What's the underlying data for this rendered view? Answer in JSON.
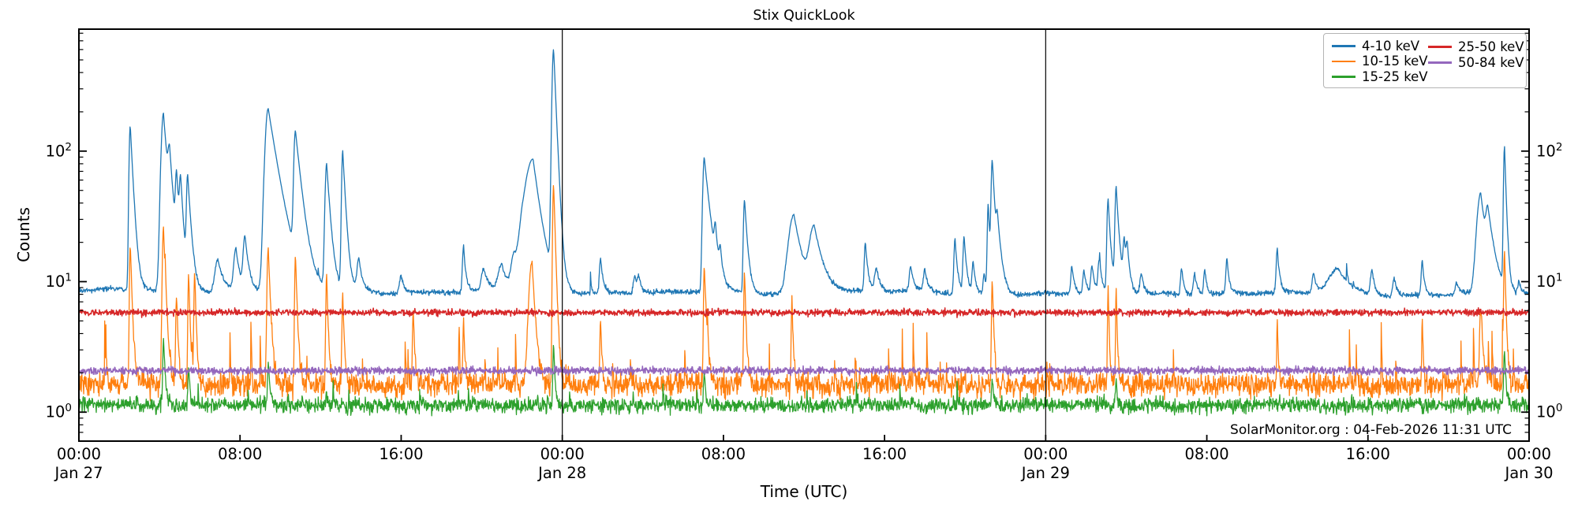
{
  "figure": {
    "title": "Stix QuickLook",
    "xlabel": "Time (UTC)",
    "ylabel": "Counts",
    "watermark": "SolarMonitor.org : 04-Feb-2026 11:31 UTC"
  },
  "legend": {
    "items": [
      {
        "label": "4-10 keV",
        "color": "#1f77b4"
      },
      {
        "label": "10-15 keV",
        "color": "#ff7f0e"
      },
      {
        "label": "15-25 keV",
        "color": "#2ca02c"
      },
      {
        "label": "25-50 keV",
        "color": "#d62728"
      },
      {
        "label": "50-84 keV",
        "color": "#9467bd"
      }
    ]
  },
  "chart_data": {
    "type": "line",
    "title": "Stix QuickLook",
    "xlabel": "Time (UTC)",
    "ylabel": "Counts",
    "x_axis": {
      "unit": "hours since Jan 27 00:00 UTC",
      "range": [
        0,
        72
      ],
      "day_boundaries": [
        24,
        48
      ],
      "ticks": [
        {
          "t": 0,
          "label": "00:00",
          "day": "Jan 27"
        },
        {
          "t": 8,
          "label": "08:00"
        },
        {
          "t": 16,
          "label": "16:00"
        },
        {
          "t": 24,
          "label": "00:00",
          "day": "Jan 28"
        },
        {
          "t": 32,
          "label": "08:00"
        },
        {
          "t": 40,
          "label": "16:00"
        },
        {
          "t": 48,
          "label": "00:00",
          "day": "Jan 29"
        },
        {
          "t": 56,
          "label": "08:00"
        },
        {
          "t": 64,
          "label": "16:00"
        },
        {
          "t": 72,
          "label": "00:00",
          "day": "Jan 30"
        }
      ]
    },
    "y_axis": {
      "scale": "log",
      "ylim": [
        0.6,
        860
      ],
      "ticks": [
        {
          "value": 1,
          "mantissa": "10",
          "exponent": "0"
        },
        {
          "value": 10,
          "mantissa": "10",
          "exponent": "1"
        },
        {
          "value": 100,
          "mantissa": "10",
          "exponent": "2"
        }
      ],
      "labels_on_both_sides": true
    },
    "flare_format": "[t_hours, peak_counts, rise_minutes, decay_minutes]",
    "series": [
      {
        "name": "4-10 keV",
        "color": "#1f77b4",
        "width": 1.3,
        "baseline": 8.55,
        "trend": -0.07,
        "noise": 0.022,
        "wander": 0.05,
        "micro_spikes": {
          "prob": 0.006,
          "max": 4.0,
          "decay": 0.6
        },
        "flares": [
          [
            2.55,
            156,
            3,
            8
          ],
          [
            4.2,
            195,
            6,
            12
          ],
          [
            4.5,
            70,
            4,
            10
          ],
          [
            4.85,
            57,
            3,
            8
          ],
          [
            5.05,
            50,
            3,
            8
          ],
          [
            5.4,
            62,
            3,
            9
          ],
          [
            6.9,
            15,
            8,
            15
          ],
          [
            7.8,
            18,
            6,
            10
          ],
          [
            8.25,
            22,
            5,
            10
          ],
          [
            9.4,
            212,
            8,
            26
          ],
          [
            10.75,
            135,
            4,
            16
          ],
          [
            12.3,
            80,
            4,
            10
          ],
          [
            13.1,
            100,
            3,
            8
          ],
          [
            13.9,
            15,
            5,
            10
          ],
          [
            16.0,
            11.5,
            5,
            10
          ],
          [
            19.1,
            19,
            3,
            6
          ],
          [
            20.1,
            12.5,
            6,
            12
          ],
          [
            21.0,
            13.5,
            10,
            15
          ],
          [
            21.6,
            14,
            8,
            12
          ],
          [
            22.0,
            11.5,
            5,
            8
          ],
          [
            22.55,
            87,
            22,
            20
          ],
          [
            23.57,
            600,
            4,
            7
          ],
          [
            25.9,
            15.4,
            3,
            7
          ],
          [
            27.6,
            11.5,
            4,
            8
          ],
          [
            27.8,
            11,
            4,
            8
          ],
          [
            31.05,
            90,
            4,
            15
          ],
          [
            31.6,
            20,
            3,
            7
          ],
          [
            31.85,
            14.7,
            3,
            6
          ],
          [
            33.05,
            43,
            3,
            8
          ],
          [
            35.5,
            33,
            14,
            22
          ],
          [
            36.5,
            26,
            12,
            24
          ],
          [
            39.05,
            20,
            3,
            7
          ],
          [
            39.6,
            13,
            5,
            9
          ],
          [
            41.3,
            13.2,
            4,
            8
          ],
          [
            42.0,
            12.5,
            4,
            8
          ],
          [
            43.5,
            21.7,
            3,
            7
          ],
          [
            43.95,
            22.3,
            3,
            7
          ],
          [
            44.4,
            14.7,
            3,
            6
          ],
          [
            44.95,
            12,
            3,
            6
          ],
          [
            45.15,
            40,
            2.5,
            5
          ],
          [
            45.35,
            84,
            3,
            8
          ],
          [
            45.6,
            24,
            3,
            12
          ],
          [
            49.3,
            13.7,
            3,
            7
          ],
          [
            49.9,
            12.5,
            3,
            7
          ],
          [
            50.3,
            13.5,
            3,
            7
          ],
          [
            50.65,
            14.7,
            3,
            7
          ],
          [
            51.1,
            43,
            3,
            7
          ],
          [
            51.5,
            53,
            3,
            8
          ],
          [
            51.9,
            20.3,
            3,
            7
          ],
          [
            52.05,
            17,
            3,
            7
          ],
          [
            52.75,
            12,
            4,
            8
          ],
          [
            54.75,
            13.3,
            3,
            6
          ],
          [
            55.4,
            12.2,
            4,
            8
          ],
          [
            55.9,
            13,
            3,
            6
          ],
          [
            57.0,
            15.4,
            3,
            6
          ],
          [
            59.5,
            18.2,
            3,
            6
          ],
          [
            61.3,
            12,
            4,
            8
          ],
          [
            62.5,
            13.2,
            25,
            35
          ],
          [
            64.2,
            13,
            4,
            8
          ],
          [
            65.3,
            11.5,
            4,
            8
          ],
          [
            66.7,
            15.2,
            3,
            6
          ],
          [
            68.4,
            10.5,
            4,
            8
          ],
          [
            69.6,
            48,
            10,
            16
          ],
          [
            69.95,
            28,
            5,
            18
          ],
          [
            70.78,
            107,
            2.5,
            5
          ],
          [
            71.5,
            10.5,
            3,
            6
          ]
        ]
      },
      {
        "name": "10-15 keV",
        "color": "#ff7f0e",
        "width": 1.3,
        "baseline": 1.62,
        "trend": 0,
        "noise": 0.1,
        "wander": 0.03,
        "micro_spikes": {
          "prob": 0.02,
          "max": 3.5,
          "decay": 0.5
        },
        "flares": [
          [
            2.55,
            19,
            2,
            5
          ],
          [
            4.2,
            26,
            3,
            6
          ],
          [
            4.85,
            8,
            2,
            4
          ],
          [
            5.45,
            11.5,
            2,
            4
          ],
          [
            5.75,
            12,
            2,
            4
          ],
          [
            9.4,
            18,
            3,
            6
          ],
          [
            10.75,
            16,
            2,
            5
          ],
          [
            12.3,
            11.6,
            2,
            4
          ],
          [
            13.1,
            8,
            2,
            4
          ],
          [
            16.6,
            6,
            2,
            4
          ],
          [
            19.1,
            5,
            2,
            4
          ],
          [
            22.5,
            14.3,
            8,
            8
          ],
          [
            23.57,
            56,
            2.5,
            5
          ],
          [
            25.9,
            5,
            2,
            4
          ],
          [
            31.05,
            13,
            2,
            6
          ],
          [
            33.05,
            12,
            2,
            4
          ],
          [
            35.4,
            6.4,
            2,
            4
          ],
          [
            45.35,
            10.2,
            2,
            4
          ],
          [
            51.1,
            9,
            1.5,
            3
          ],
          [
            51.5,
            9,
            1.5,
            3
          ],
          [
            59.5,
            5,
            1.5,
            3
          ],
          [
            66.7,
            5,
            1.5,
            3
          ],
          [
            69.6,
            6,
            3,
            6
          ],
          [
            70.78,
            17,
            2,
            4
          ]
        ]
      },
      {
        "name": "15-25 keV",
        "color": "#2ca02c",
        "width": 1.3,
        "baseline": 1.13,
        "trend": 0,
        "noise": 0.065,
        "wander": 0.02,
        "micro_spikes": {
          "prob": 0.015,
          "max": 0.55,
          "decay": 0.5
        },
        "flares": [
          [
            4.2,
            3.6,
            2,
            5
          ],
          [
            5.45,
            2.2,
            2,
            4
          ],
          [
            9.4,
            2.3,
            2,
            5
          ],
          [
            23.57,
            3.2,
            2,
            4
          ],
          [
            31.05,
            2.0,
            2,
            4
          ],
          [
            45.35,
            1.9,
            2,
            4
          ],
          [
            51.5,
            1.8,
            2,
            3
          ],
          [
            70.78,
            3.0,
            2,
            4
          ]
        ]
      },
      {
        "name": "25-50 keV",
        "color": "#d62728",
        "width": 1.5,
        "baseline": 5.8,
        "trend": 0,
        "noise": 0.028,
        "wander": 0.0,
        "micro_spikes": null,
        "flares": []
      },
      {
        "name": "50-84 keV",
        "color": "#9467bd",
        "width": 1.5,
        "baseline": 2.08,
        "trend": 0,
        "noise": 0.032,
        "wander": 0.0,
        "micro_spikes": null,
        "flares": []
      }
    ]
  }
}
